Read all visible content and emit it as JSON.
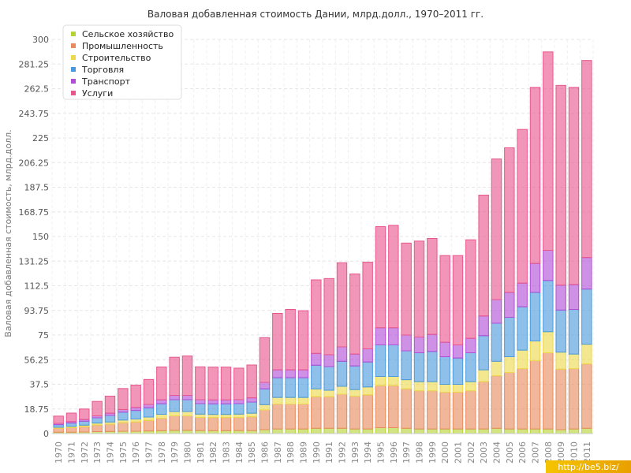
{
  "chart_data": {
    "type": "bar",
    "stacked": true,
    "title": "Валовая добавленная стоимость Дании, млрд.долл., 1970–2011 гг.",
    "ylabel": "Валовая добавленная стоимость, млрд.долл.",
    "xlabel": "",
    "ylim": [
      0,
      300
    ],
    "yticks": [
      "0",
      "18.75",
      "37.5",
      "56.25",
      "75",
      "93.75",
      "112.5",
      "131.25",
      "150",
      "168.75",
      "187.5",
      "206.25",
      "225",
      "243.75",
      "262.5",
      "281.25",
      "300"
    ],
    "grid": true,
    "legend_position": "top-left",
    "categories": [
      "1970",
      "1971",
      "1972",
      "1973",
      "1974",
      "1975",
      "1976",
      "1977",
      "1978",
      "1979",
      "1980",
      "1981",
      "1982",
      "1983",
      "1984",
      "1985",
      "1986",
      "1987",
      "1988",
      "1989",
      "1990",
      "1991",
      "1992",
      "1993",
      "1994",
      "1995",
      "1996",
      "1997",
      "1998",
      "1999",
      "2000",
      "2001",
      "2002",
      "2003",
      "2004",
      "2005",
      "2006",
      "2007",
      "2008",
      "2009",
      "2010",
      "2011"
    ],
    "series": [
      {
        "name": "Сельское хозяйство",
        "color": "#b5d334",
        "values": [
          1,
          1,
          1.2,
          1.5,
          1.6,
          1.8,
          1.8,
          2,
          2.2,
          2.5,
          2.5,
          2.3,
          2.2,
          2.2,
          2.3,
          2.3,
          3,
          3.5,
          3.5,
          3.5,
          4,
          4,
          4,
          3.5,
          3.5,
          4.5,
          4.5,
          4,
          3.5,
          3.5,
          3.5,
          3.5,
          3.5,
          3.5,
          4,
          3.5,
          3.5,
          3.5,
          3.5,
          3,
          3.5,
          4
        ]
      },
      {
        "name": "Промышленность",
        "color": "#e88a5e",
        "values": [
          3,
          3.5,
          4,
          5,
          5.5,
          6.5,
          7,
          8,
          9.5,
          11,
          11,
          10,
          10,
          10,
          10,
          10.5,
          15,
          19,
          19,
          19,
          24,
          24,
          26,
          25,
          26,
          32,
          32,
          30,
          29,
          29,
          28,
          28,
          29,
          36,
          40,
          43,
          46,
          52,
          58,
          46,
          46,
          49
        ]
      },
      {
        "name": "Строительство",
        "color": "#ecd84a",
        "values": [
          0.8,
          1,
          1.2,
          1.5,
          1.7,
          2,
          2.3,
          2.6,
          3,
          3.3,
          3.3,
          2.5,
          2.4,
          2.4,
          2.5,
          2.7,
          4,
          5,
          5,
          5,
          6,
          5,
          6,
          5,
          6,
          7,
          7,
          7,
          7,
          7,
          6,
          6,
          7,
          9,
          11,
          12,
          14,
          15,
          16,
          13,
          11,
          15
        ]
      },
      {
        "name": "Торговля",
        "color": "#4a99dc",
        "values": [
          2,
          2.5,
          3,
          4,
          5,
          6,
          6.5,
          7,
          8,
          9,
          9,
          8,
          8,
          8,
          8,
          8.5,
          12,
          15,
          15,
          15,
          18,
          18,
          19,
          18,
          19,
          24,
          24,
          22,
          22,
          23,
          21,
          20,
          22,
          26,
          29,
          30,
          33,
          37,
          39,
          32,
          34,
          42
        ]
      },
      {
        "name": "Транспорт",
        "color": "#b04ed6",
        "values": [
          1,
          1.1,
          1.3,
          1.5,
          1.7,
          2,
          2.3,
          2.6,
          3,
          3.3,
          3.3,
          3,
          3,
          3,
          3,
          3.2,
          5,
          6,
          6,
          6,
          9,
          9,
          11,
          9,
          10,
          13,
          13,
          12,
          12,
          13,
          11,
          10,
          11,
          15,
          18,
          19,
          18,
          22,
          23,
          19,
          19,
          24
        ]
      },
      {
        "name": "Услуги",
        "color": "#e8568c",
        "values": [
          5.5,
          6.5,
          8,
          11,
          13,
          16,
          17,
          19,
          25,
          29,
          30,
          25,
          25,
          25,
          24,
          25,
          34,
          43,
          46,
          45,
          56,
          58,
          64,
          61,
          66,
          77,
          78,
          70,
          73,
          73,
          66,
          68,
          75,
          92,
          107,
          110,
          117,
          134,
          151,
          152,
          150,
          150
        ]
      }
    ]
  },
  "watermark": "http://be5.biz/"
}
